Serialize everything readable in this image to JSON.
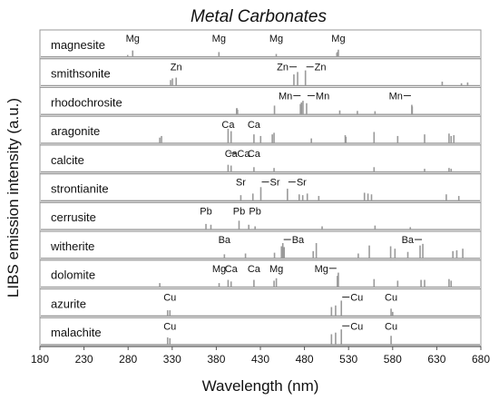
{
  "chart_data": {
    "type": "line",
    "title": "Metal Carbonates",
    "xlabel": "Wavelength (nm)",
    "ylabel": "LIBS emission intensity (a.u.)",
    "xlim": [
      180,
      680
    ],
    "x_ticks": [
      "180",
      "230",
      "280",
      "330",
      "380",
      "430",
      "480",
      "530",
      "580",
      "630",
      "680"
    ],
    "line_color": "#9a9a9a",
    "panel_border_color": "#999999",
    "series": [
      {
        "name": "magnesite",
        "peaks": [
          [
            279.5,
            0.12
          ],
          [
            285.2,
            0.4
          ],
          [
            383.0,
            0.3
          ],
          [
            448.0,
            0.18
          ],
          [
            517.3,
            0.3
          ],
          [
            518.4,
            0.45
          ],
          [
            516.7,
            0.25
          ]
        ],
        "annotations": [
          {
            "text": "Mg",
            "x": 285.2,
            "lead": "none"
          },
          {
            "text": "Mg",
            "x": 383.0,
            "lead": "none"
          },
          {
            "text": "Mg",
            "x": 448.0,
            "lead": "none"
          },
          {
            "text": "Mg",
            "x": 518.4,
            "lead": "none"
          }
        ]
      },
      {
        "name": "smithsonite",
        "peaks": [
          [
            328.2,
            0.35
          ],
          [
            330.3,
            0.45
          ],
          [
            334.5,
            0.5
          ],
          [
            468.0,
            0.7
          ],
          [
            472.2,
            0.85
          ],
          [
            481.1,
            0.95
          ],
          [
            636.2,
            0.25
          ],
          [
            658.0,
            0.15
          ],
          [
            665.0,
            0.2
          ]
        ],
        "annotations": [
          {
            "text": "Zn",
            "x": 334.5,
            "lead": "none"
          },
          {
            "text": "Zn",
            "x": 472.2,
            "lead": "left"
          },
          {
            "text": "Zn",
            "x": 481.1,
            "lead": "right"
          }
        ]
      },
      {
        "name": "rhodochrosite",
        "peaks": [
          [
            403.1,
            0.35
          ],
          [
            403.3,
            0.4
          ],
          [
            404.1,
            0.3
          ],
          [
            446.0,
            0.55
          ],
          [
            475.4,
            0.65
          ],
          [
            476.6,
            0.75
          ],
          [
            478.3,
            0.85
          ],
          [
            482.4,
            0.7
          ],
          [
            601.7,
            0.6
          ],
          [
            602.2,
            0.5
          ],
          [
            560.0,
            0.2
          ],
          [
            520.0,
            0.25
          ],
          [
            540.0,
            0.22
          ]
        ],
        "annotations": [
          {
            "text": "Mn",
            "x": 476.6,
            "lead": "left"
          },
          {
            "text": "Mn",
            "x": 482.4,
            "lead": "right"
          },
          {
            "text": "Mn",
            "x": 601.7,
            "lead": "left"
          }
        ]
      },
      {
        "name": "aragonite",
        "peaks": [
          [
            315.9,
            0.35
          ],
          [
            317.9,
            0.45
          ],
          [
            393.4,
            0.9
          ],
          [
            396.8,
            0.75
          ],
          [
            422.7,
            0.55
          ],
          [
            430.3,
            0.45
          ],
          [
            443.5,
            0.55
          ],
          [
            445.5,
            0.65
          ],
          [
            487.8,
            0.3
          ],
          [
            526.2,
            0.5
          ],
          [
            527.0,
            0.4
          ],
          [
            558.9,
            0.7
          ],
          [
            585.7,
            0.45
          ],
          [
            616.2,
            0.55
          ],
          [
            643.9,
            0.6
          ],
          [
            646.3,
            0.45
          ],
          [
            649.4,
            0.5
          ]
        ],
        "annotations": [
          {
            "text": "Ca",
            "x": 393.4,
            "lead": "none"
          },
          {
            "text": "Ca",
            "x": 422.7,
            "lead": "none"
          }
        ]
      },
      {
        "name": "calcite",
        "peaks": [
          [
            393.4,
            0.45
          ],
          [
            396.8,
            0.4
          ],
          [
            422.7,
            0.3
          ],
          [
            445.5,
            0.25
          ],
          [
            558.9,
            0.3
          ],
          [
            616.2,
            0.2
          ],
          [
            643.9,
            0.25
          ],
          [
            646.3,
            0.2
          ]
        ],
        "annotations": [
          {
            "text": "Ca",
            "x": 393.4,
            "lead": "right"
          },
          {
            "text": "Ca",
            "x": 396.8,
            "lead": "none"
          },
          {
            "text": "Ca",
            "x": 422.7,
            "lead": "none"
          }
        ]
      },
      {
        "name": "strontianite",
        "peaks": [
          [
            407.8,
            0.35
          ],
          [
            421.5,
            0.45
          ],
          [
            430.5,
            0.85
          ],
          [
            460.7,
            0.75
          ],
          [
            474.0,
            0.4
          ],
          [
            478.0,
            0.35
          ],
          [
            483.2,
            0.45
          ],
          [
            496.2,
            0.3
          ],
          [
            548.0,
            0.5
          ],
          [
            552.0,
            0.45
          ],
          [
            556.0,
            0.4
          ],
          [
            640.8,
            0.4
          ],
          [
            655.0,
            0.3
          ]
        ],
        "annotations": [
          {
            "text": "Sr",
            "x": 407.8,
            "lead": "none"
          },
          {
            "text": "Sr",
            "x": 430.5,
            "lead": "right"
          },
          {
            "text": "Sr",
            "x": 460.7,
            "lead": "right"
          }
        ]
      },
      {
        "name": "cerrusite",
        "peaks": [
          [
            368.3,
            0.35
          ],
          [
            373.9,
            0.3
          ],
          [
            405.8,
            0.55
          ],
          [
            416.8,
            0.3
          ],
          [
            424.0,
            0.2
          ],
          [
            500.0,
            0.2
          ],
          [
            560.0,
            0.25
          ],
          [
            600.0,
            0.15
          ]
        ],
        "annotations": [
          {
            "text": "Pb",
            "x": 368.3,
            "lead": "none"
          },
          {
            "text": "Pb",
            "x": 405.8,
            "lead": "none"
          },
          {
            "text": "Pb",
            "x": 424.0,
            "lead": "none"
          }
        ]
      },
      {
        "name": "witherite",
        "peaks": [
          [
            389.2,
            0.25
          ],
          [
            413.1,
            0.3
          ],
          [
            446.0,
            0.35
          ],
          [
            453.9,
            0.75
          ],
          [
            455.4,
            0.95
          ],
          [
            457.0,
            0.7
          ],
          [
            489.9,
            0.45
          ],
          [
            493.4,
            0.95
          ],
          [
            541.0,
            0.3
          ],
          [
            553.5,
            0.8
          ],
          [
            577.7,
            0.75
          ],
          [
            582.6,
            0.6
          ],
          [
            597.2,
            0.4
          ],
          [
            611.1,
            0.8
          ],
          [
            614.2,
            0.9
          ],
          [
            648.3,
            0.45
          ],
          [
            652.7,
            0.5
          ],
          [
            659.5,
            0.6
          ]
        ],
        "annotations": [
          {
            "text": "Ba",
            "x": 389.2,
            "lead": "none"
          },
          {
            "text": "Ba",
            "x": 455.4,
            "lead": "right"
          },
          {
            "text": "Ba",
            "x": 614.2,
            "lead": "left"
          }
        ]
      },
      {
        "name": "dolomite",
        "peaks": [
          [
            315.9,
            0.25
          ],
          [
            383.2,
            0.25
          ],
          [
            393.4,
            0.45
          ],
          [
            396.8,
            0.35
          ],
          [
            422.7,
            0.45
          ],
          [
            445.5,
            0.4
          ],
          [
            448.1,
            0.55
          ],
          [
            517.3,
            0.7
          ],
          [
            518.4,
            0.9
          ],
          [
            558.9,
            0.5
          ],
          [
            585.7,
            0.4
          ],
          [
            612.2,
            0.45
          ],
          [
            616.2,
            0.45
          ],
          [
            643.9,
            0.5
          ],
          [
            646.3,
            0.4
          ]
        ],
        "annotations": [
          {
            "text": "Mg",
            "x": 383.2,
            "lead": "none"
          },
          {
            "text": "Ca",
            "x": 396.8,
            "lead": "none"
          },
          {
            "text": "Ca",
            "x": 422.7,
            "lead": "none"
          },
          {
            "text": "Mg",
            "x": 448.1,
            "lead": "none"
          },
          {
            "text": "Mg",
            "x": 517.3,
            "lead": "left"
          }
        ]
      },
      {
        "name": "azurite",
        "peaks": [
          [
            324.8,
            0.35
          ],
          [
            327.4,
            0.35
          ],
          [
            510.6,
            0.55
          ],
          [
            515.3,
            0.65
          ],
          [
            521.8,
            0.95
          ],
          [
            578.2,
            0.45
          ],
          [
            580.0,
            0.25
          ]
        ],
        "annotations": [
          {
            "text": "Cu",
            "x": 327.4,
            "lead": "none"
          },
          {
            "text": "Cu",
            "x": 521.8,
            "lead": "right"
          },
          {
            "text": "Cu",
            "x": 578.2,
            "lead": "none"
          }
        ]
      },
      {
        "name": "malachite",
        "peaks": [
          [
            324.8,
            0.45
          ],
          [
            327.4,
            0.4
          ],
          [
            510.6,
            0.65
          ],
          [
            515.3,
            0.75
          ],
          [
            521.8,
            0.95
          ],
          [
            578.2,
            0.55
          ]
        ],
        "annotations": [
          {
            "text": "Cu",
            "x": 327.4,
            "lead": "none"
          },
          {
            "text": "Cu",
            "x": 521.8,
            "lead": "right"
          },
          {
            "text": "Cu",
            "x": 578.2,
            "lead": "none"
          }
        ]
      }
    ]
  }
}
